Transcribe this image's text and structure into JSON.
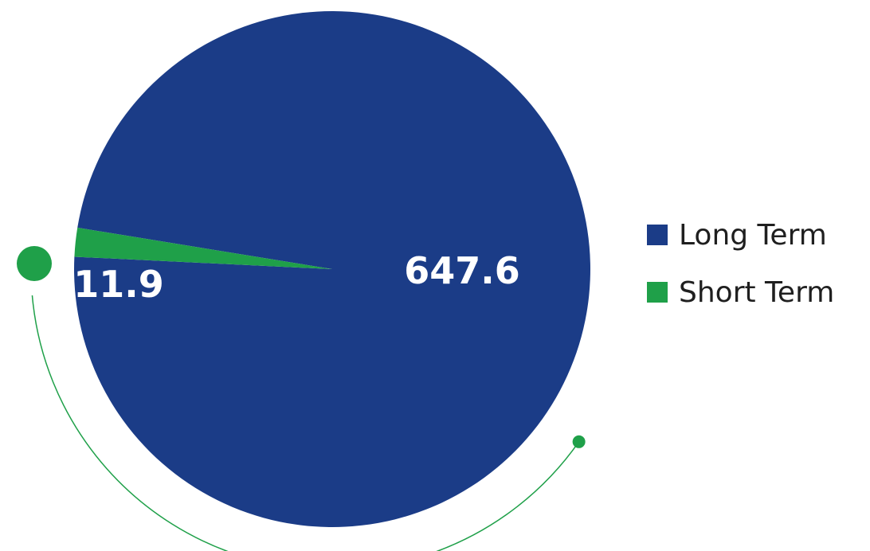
{
  "chart_data": {
    "type": "pie",
    "title": "",
    "categories": [
      "Long Term",
      "Short Term"
    ],
    "values": [
      647.6,
      11.9
    ],
    "data_labels": [
      "647.6",
      "11.9"
    ],
    "colors": [
      "#1b3c87",
      "#1fa049"
    ],
    "legend_placement": "right",
    "decoration_color": "#1fa049"
  }
}
